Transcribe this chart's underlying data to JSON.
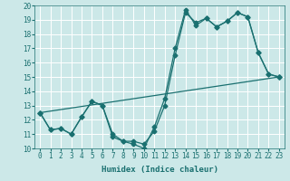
{
  "xlabel": "Humidex (Indice chaleur)",
  "bg_color": "#cce8e8",
  "grid_color": "#ffffff",
  "line_color": "#1a7070",
  "xlim": [
    -0.5,
    23.5
  ],
  "ylim": [
    10,
    20
  ],
  "yticks": [
    10,
    11,
    12,
    13,
    14,
    15,
    16,
    17,
    18,
    19,
    20
  ],
  "xticks": [
    0,
    1,
    2,
    3,
    4,
    5,
    6,
    7,
    8,
    9,
    10,
    11,
    12,
    13,
    14,
    15,
    16,
    17,
    18,
    19,
    20,
    21,
    22,
    23
  ],
  "series1_x": [
    0,
    1,
    2,
    3,
    4,
    5,
    6,
    7,
    8,
    9,
    10,
    11,
    12,
    13,
    14,
    15,
    16,
    17,
    18,
    19,
    20,
    21,
    22,
    23
  ],
  "series1_y": [
    12.5,
    11.3,
    11.4,
    11.0,
    12.2,
    13.3,
    13.0,
    11.0,
    10.5,
    10.3,
    10.0,
    11.5,
    13.5,
    17.0,
    19.7,
    18.6,
    19.1,
    18.5,
    18.9,
    19.5,
    19.2,
    16.7,
    15.2,
    15.0
  ],
  "series2_x": [
    0,
    1,
    2,
    3,
    4,
    5,
    6,
    7,
    8,
    9,
    10,
    11,
    12,
    13,
    14,
    15,
    16,
    17,
    18,
    19,
    20,
    21,
    22,
    23
  ],
  "series2_y": [
    12.5,
    11.3,
    11.4,
    11.0,
    12.2,
    13.3,
    13.0,
    10.8,
    10.5,
    10.5,
    10.3,
    11.2,
    13.0,
    16.5,
    19.5,
    18.8,
    19.1,
    18.5,
    18.9,
    19.5,
    19.2,
    16.7,
    15.2,
    15.0
  ],
  "series3_x": [
    0,
    23
  ],
  "series3_y": [
    12.5,
    15.0
  ],
  "marker_size": 2.5,
  "line_width": 0.9,
  "font_size": 6.5,
  "tick_font_size": 5.5
}
